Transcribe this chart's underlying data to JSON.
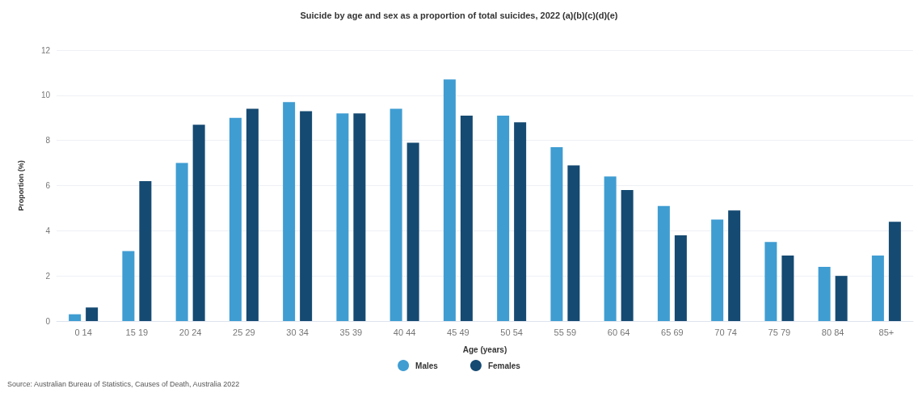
{
  "chart_data": {
    "type": "bar",
    "title": "Suicide by age and sex as a proportion of total suicides, 2022 (a)(b)(c)(d)(e)",
    "xlabel": "Age (years)",
    "ylabel": "Proportion (%)",
    "categories": [
      "0 14",
      "15 19",
      "20 24",
      "25 29",
      "30 34",
      "35 39",
      "40 44",
      "45 49",
      "50 54",
      "55 59",
      "60 64",
      "65 69",
      "70 74",
      "75 79",
      "80 84",
      "85+"
    ],
    "series": [
      {
        "name": "Males",
        "color": "#3f9dd2",
        "values": [
          0.3,
          3.1,
          7.0,
          9.0,
          9.7,
          9.2,
          9.4,
          10.7,
          9.1,
          7.7,
          6.4,
          5.1,
          4.5,
          3.5,
          2.4,
          2.9
        ]
      },
      {
        "name": "Females",
        "color": "#154a72",
        "values": [
          0.6,
          6.2,
          8.7,
          9.4,
          9.3,
          9.2,
          7.9,
          9.1,
          8.8,
          6.9,
          5.8,
          3.8,
          4.9,
          2.9,
          2.0,
          4.4
        ]
      }
    ],
    "ylim": [
      0,
      12
    ],
    "yticks": [
      0,
      2,
      4,
      6,
      8,
      10,
      12
    ],
    "grid": "y",
    "legend": "bottom",
    "annotations": [
      "Source: Australian Bureau of Statistics, Causes of Death, Australia 2022"
    ]
  }
}
